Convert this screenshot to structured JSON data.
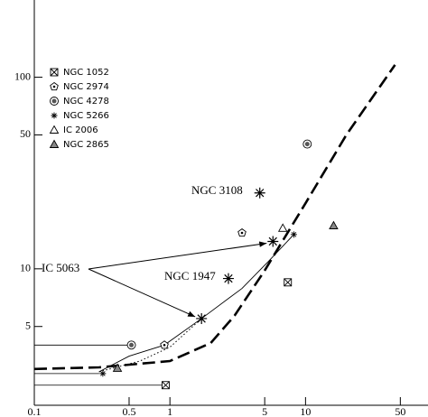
{
  "chart_data": {
    "type": "scatter",
    "xlog": true,
    "ylog": true,
    "xlim": [
      0.1,
      80
    ],
    "ylim": [
      1.94,
      253
    ],
    "xticks": [
      0.1,
      0.5,
      1,
      5,
      10,
      50
    ],
    "yticks": [
      5,
      10,
      50,
      100
    ],
    "legend": "upper left",
    "series": [
      {
        "name": "NGC 1052",
        "marker": "boxx",
        "x": [
          0.93,
          7.4
        ],
        "y": [
          2.47,
          8.5
        ],
        "x_limits": [
          true,
          false
        ]
      },
      {
        "name": "NGC 2974",
        "marker": "pentagon",
        "x": [
          0.91,
          3.4
        ],
        "y": [
          4.0,
          15.4
        ],
        "x_limits": [
          false,
          false
        ]
      },
      {
        "name": "NGC 4278",
        "marker": "circledot",
        "x": [
          0.52,
          10.3
        ],
        "y": [
          4.0,
          44.8
        ],
        "x_limits": [
          true,
          false
        ]
      },
      {
        "name": "NGC 5266",
        "marker": "asterisk",
        "x": [
          0.32,
          8.2
        ],
        "y": [
          2.84,
          15.1
        ],
        "x_limits": [
          true,
          false
        ]
      },
      {
        "name": "IC 2006",
        "marker": "triangle",
        "x": [
          6.8
        ],
        "y": [
          16.3
        ],
        "x_limits": [
          false
        ]
      },
      {
        "name": "NGC 2865",
        "marker": "filledtriangle",
        "x": [
          0.41,
          16.1
        ],
        "y": [
          3.03,
          16.8
        ],
        "x_limits": [
          false,
          false
        ]
      }
    ],
    "annotations": [
      {
        "text": "NGC 3108",
        "x": [
          4.6
        ],
        "y": [
          24.9
        ]
      },
      {
        "text": "NGC 1947",
        "x": [
          2.7
        ],
        "y": [
          8.9
        ]
      },
      {
        "text": "IC 5063",
        "x": [
          5.75,
          1.71
        ],
        "y": [
          13.9,
          5.5
        ]
      }
    ],
    "lines": [
      {
        "style": "dashed",
        "x": [
          0.1,
          0.3,
          1,
          2,
          3,
          5,
          10,
          20,
          45.7
        ],
        "y": [
          3.0,
          3.06,
          3.3,
          4.1,
          5.7,
          9.8,
          22,
          50,
          116
        ]
      },
      {
        "style": "solid",
        "x": [
          0.3,
          0.5,
          0.91,
          1.71,
          3.4,
          5.3,
          8.2
        ],
        "y": [
          2.9,
          3.5,
          4.0,
          5.5,
          7.9,
          10.9,
          15.1
        ]
      },
      {
        "style": "dotted",
        "x": [
          0.3,
          0.6,
          1,
          1.71
        ],
        "y": [
          2.9,
          3.3,
          3.9,
          5.5
        ]
      }
    ]
  }
}
